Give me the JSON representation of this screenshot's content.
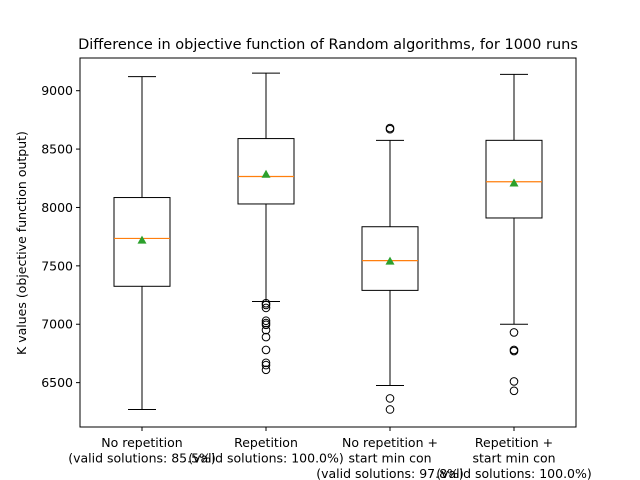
{
  "chart_data": {
    "type": "box",
    "title": "Difference in objective function of Random algorithms, for 1000 runs",
    "ylabel": "K values (objective function output)",
    "xlabel": "",
    "ylim": [
      6120,
      9280
    ],
    "yticks": [
      6500,
      7000,
      7500,
      8000,
      8500,
      9000
    ],
    "grid": false,
    "colors": {
      "box": "#000000",
      "median": "#ff7f0e",
      "mean": "#2ca02c",
      "flier": "#000000"
    },
    "categories": [
      [
        "No repetition",
        "(valid solutions: 85.5%)"
      ],
      [
        "Repetition",
        "(valid solutions: 100.0%)"
      ],
      [
        "No repetition +",
        "start min con",
        "(valid solutions: 97.8%)"
      ],
      [
        "Repetition +",
        "start min con",
        "(valid solutions: 100.0%)"
      ]
    ],
    "boxes": [
      {
        "whisker_low": 6270,
        "q1": 7325,
        "median": 7735,
        "q3": 8085,
        "whisker_high": 9120,
        "mean": 7720,
        "fliers": []
      },
      {
        "whisker_low": 7195,
        "q1": 8030,
        "median": 8265,
        "q3": 8590,
        "whisker_high": 9150,
        "mean": 8285,
        "fliers": [
          7180,
          7165,
          7140,
          7030,
          7010,
          6995,
          6950,
          6890,
          6780,
          6670,
          6650,
          6610
        ]
      },
      {
        "whisker_low": 6475,
        "q1": 7290,
        "median": 7545,
        "q3": 7835,
        "whisker_high": 8575,
        "mean": 7540,
        "fliers": [
          8680,
          8670,
          6365,
          6270
        ]
      },
      {
        "whisker_low": 7000,
        "q1": 7910,
        "median": 8220,
        "q3": 8575,
        "whisker_high": 9140,
        "mean": 8210,
        "fliers": [
          6930,
          6780,
          6770,
          6510,
          6430
        ]
      }
    ]
  }
}
